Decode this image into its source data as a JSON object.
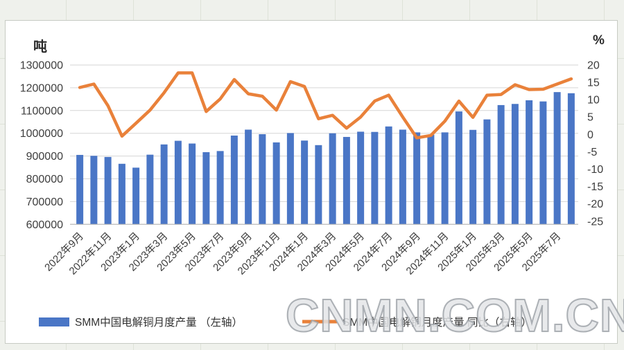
{
  "watermark": "CNMN.COM.CN",
  "chart_data": {
    "type": "combo",
    "title": "",
    "categories": [
      "2022年9月",
      "2022年10月",
      "2022年11月",
      "2022年12月",
      "2023年1月",
      "2023年2月",
      "2023年3月",
      "2023年4月",
      "2023年5月",
      "2023年6月",
      "2023年7月",
      "2023年8月",
      "2023年9月",
      "2023年10月",
      "2023年11月",
      "2023年12月",
      "2024年1月",
      "2024年2月",
      "2024年3月",
      "2024年4月",
      "2024年5月",
      "2024年6月",
      "2024年7月",
      "2024年8月",
      "2024年9月",
      "2024年10月",
      "2024年11月",
      "2024年12月",
      "2025年1月",
      "2025年2月",
      "2025年3月",
      "2025年4月",
      "2025年5月",
      "2025年6月",
      "2025年7月",
      "2025年8月"
    ],
    "x_tick_every": 2,
    "series": [
      {
        "name": "SMM中国电解铜月度产量 （左轴）",
        "type": "bar",
        "axis": "left",
        "color": "#4a76c6",
        "values": [
          905000,
          901000,
          896000,
          866000,
          849000,
          906000,
          951000,
          967000,
          955000,
          917000,
          922000,
          990000,
          1016000,
          996000,
          960000,
          1001000,
          968000,
          948000,
          1000000,
          984000,
          1007000,
          1006000,
          1030000,
          1016000,
          1004000,
          994000,
          1004000,
          1096000,
          1015000,
          1061000,
          1124000,
          1129000,
          1145000,
          1140000,
          1181000,
          1176000
        ]
      },
      {
        "name": "SMM中国电解铜月度产量 同比（右轴）",
        "type": "line",
        "axis": "right",
        "color": "#e9813a",
        "values": [
          13.5,
          14.5,
          8.3,
          -0.5,
          3.2,
          7.0,
          12.0,
          17.7,
          17.7,
          6.6,
          10.2,
          15.8,
          11.7,
          11.0,
          7.0,
          15.2,
          13.8,
          4.5,
          5.5,
          1.8,
          5.0,
          9.6,
          11.3,
          5.0,
          -1.0,
          -0.3,
          3.8,
          9.6,
          4.9,
          11.3,
          11.5,
          14.3,
          12.9,
          13.0,
          14.5,
          16.0
        ]
      }
    ],
    "left_axis": {
      "unit": "吨",
      "min": 600000,
      "max": 1300000,
      "step": 100000,
      "tick_labels": [
        "1300000",
        "1200000",
        "1100000",
        "1000000",
        "900000",
        "800000",
        "700000",
        "600000"
      ]
    },
    "right_axis": {
      "unit": "%",
      "min": -25,
      "max": 20,
      "step": 5,
      "tick_labels": [
        "20",
        "15",
        "10",
        "5",
        "0",
        "-5",
        "-10",
        "-15",
        "-20",
        "-25"
      ]
    },
    "grid": true,
    "legend_position": "bottom",
    "colors": {
      "gridline": "#d6d6d6",
      "axis_line": "#b9b9b9",
      "axis_text": "#3d3d3d",
      "legend_text": "#333333"
    }
  }
}
